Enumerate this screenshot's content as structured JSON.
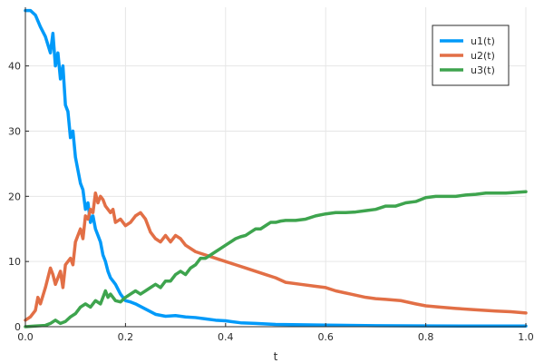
{
  "chart_data": {
    "type": "line",
    "title": "",
    "xlabel": "t",
    "ylabel": "",
    "xlim": [
      0,
      1
    ],
    "ylim": [
      0,
      49
    ],
    "x_ticks": [
      0.0,
      0.2,
      0.4,
      0.6,
      0.8,
      1.0
    ],
    "x_tick_labels": [
      "0.0",
      "0.2",
      "0.4",
      "0.6",
      "0.8",
      "1.0"
    ],
    "y_ticks": [
      0,
      10,
      20,
      30,
      40
    ],
    "y_tick_labels": [
      "0",
      "10",
      "20",
      "30",
      "40"
    ],
    "grid": true,
    "legend_position": "top-right",
    "series": [
      {
        "name": "u1(t)",
        "color": "#009af9",
        "x": [
          0.0,
          0.01,
          0.02,
          0.03,
          0.04,
          0.05,
          0.055,
          0.06,
          0.065,
          0.07,
          0.075,
          0.08,
          0.085,
          0.09,
          0.095,
          0.1,
          0.105,
          0.11,
          0.115,
          0.12,
          0.125,
          0.13,
          0.135,
          0.14,
          0.145,
          0.15,
          0.155,
          0.16,
          0.165,
          0.17,
          0.18,
          0.19,
          0.2,
          0.21,
          0.22,
          0.24,
          0.26,
          0.28,
          0.3,
          0.32,
          0.34,
          0.36,
          0.38,
          0.4,
          0.43,
          0.46,
          0.5,
          0.55,
          0.6,
          0.7,
          0.8,
          0.9,
          1.0
        ],
        "y": [
          48.5,
          48.5,
          47.8,
          46.0,
          44.5,
          42.0,
          45.0,
          40.0,
          42.0,
          38.0,
          40.0,
          34.0,
          33.0,
          29.0,
          30.0,
          26.0,
          24.0,
          22.0,
          21.0,
          18.0,
          19.0,
          16.0,
          17.0,
          15.0,
          14.0,
          13.0,
          11.0,
          10.0,
          8.5,
          7.5,
          6.5,
          5.0,
          4.0,
          3.8,
          3.5,
          2.7,
          1.9,
          1.6,
          1.7,
          1.5,
          1.4,
          1.2,
          1.0,
          0.9,
          0.6,
          0.5,
          0.35,
          0.3,
          0.25,
          0.15,
          0.12,
          0.1,
          0.1
        ]
      },
      {
        "name": "u2(t)",
        "color": "#e26f46",
        "x": [
          0.0,
          0.01,
          0.02,
          0.025,
          0.03,
          0.04,
          0.05,
          0.055,
          0.06,
          0.07,
          0.075,
          0.08,
          0.09,
          0.095,
          0.1,
          0.11,
          0.115,
          0.12,
          0.125,
          0.13,
          0.135,
          0.14,
          0.145,
          0.15,
          0.155,
          0.16,
          0.17,
          0.175,
          0.18,
          0.19,
          0.2,
          0.21,
          0.22,
          0.23,
          0.24,
          0.25,
          0.26,
          0.27,
          0.28,
          0.29,
          0.3,
          0.31,
          0.32,
          0.34,
          0.36,
          0.38,
          0.4,
          0.42,
          0.44,
          0.46,
          0.48,
          0.5,
          0.52,
          0.55,
          0.58,
          0.6,
          0.62,
          0.65,
          0.68,
          0.7,
          0.72,
          0.75,
          0.78,
          0.8,
          0.83,
          0.86,
          0.9,
          0.94,
          0.97,
          1.0
        ],
        "y": [
          1.0,
          1.5,
          2.5,
          4.5,
          3.5,
          6.0,
          9.0,
          8.0,
          6.5,
          8.5,
          6.0,
          9.5,
          10.5,
          9.5,
          13.0,
          15.0,
          13.5,
          17.0,
          16.5,
          18.0,
          17.5,
          20.5,
          19.0,
          20.0,
          19.5,
          18.5,
          17.5,
          18.0,
          16.0,
          16.5,
          15.5,
          16.0,
          17.0,
          17.5,
          16.5,
          14.5,
          13.5,
          13.0,
          14.0,
          13.0,
          14.0,
          13.5,
          12.5,
          11.5,
          11.0,
          10.5,
          10.0,
          9.5,
          9.0,
          8.5,
          8.0,
          7.5,
          6.8,
          6.5,
          6.2,
          6.0,
          5.5,
          5.0,
          4.5,
          4.3,
          4.2,
          4.0,
          3.5,
          3.2,
          3.0,
          2.8,
          2.6,
          2.4,
          2.3,
          2.1
        ]
      },
      {
        "name": "u3(t)",
        "color": "#3ea44e",
        "x": [
          0.0,
          0.02,
          0.04,
          0.05,
          0.06,
          0.07,
          0.08,
          0.09,
          0.1,
          0.11,
          0.12,
          0.13,
          0.14,
          0.15,
          0.16,
          0.165,
          0.17,
          0.18,
          0.19,
          0.2,
          0.21,
          0.22,
          0.23,
          0.24,
          0.25,
          0.26,
          0.27,
          0.28,
          0.29,
          0.3,
          0.31,
          0.32,
          0.33,
          0.34,
          0.35,
          0.36,
          0.37,
          0.38,
          0.39,
          0.4,
          0.41,
          0.42,
          0.43,
          0.44,
          0.45,
          0.46,
          0.47,
          0.48,
          0.49,
          0.5,
          0.51,
          0.52,
          0.54,
          0.56,
          0.58,
          0.6,
          0.62,
          0.64,
          0.66,
          0.68,
          0.7,
          0.72,
          0.74,
          0.76,
          0.78,
          0.8,
          0.82,
          0.84,
          0.86,
          0.88,
          0.9,
          0.92,
          0.94,
          0.96,
          0.98,
          1.0
        ],
        "y": [
          0.0,
          0.1,
          0.2,
          0.5,
          1.0,
          0.5,
          0.8,
          1.5,
          2.0,
          3.0,
          3.5,
          3.0,
          4.0,
          3.5,
          5.5,
          4.5,
          5.0,
          4.0,
          3.8,
          4.5,
          5.0,
          5.5,
          5.0,
          5.5,
          6.0,
          6.5,
          6.0,
          7.0,
          7.0,
          8.0,
          8.5,
          8.0,
          9.0,
          9.5,
          10.5,
          10.5,
          11.0,
          11.5,
          12.0,
          12.5,
          13.0,
          13.5,
          13.8,
          14.0,
          14.5,
          15.0,
          15.0,
          15.5,
          16.0,
          16.0,
          16.2,
          16.3,
          16.3,
          16.5,
          17.0,
          17.3,
          17.5,
          17.5,
          17.6,
          17.8,
          18.0,
          18.5,
          18.5,
          19.0,
          19.2,
          19.8,
          20.0,
          20.0,
          20.0,
          20.2,
          20.3,
          20.5,
          20.5,
          20.5,
          20.6,
          20.7
        ]
      }
    ]
  }
}
